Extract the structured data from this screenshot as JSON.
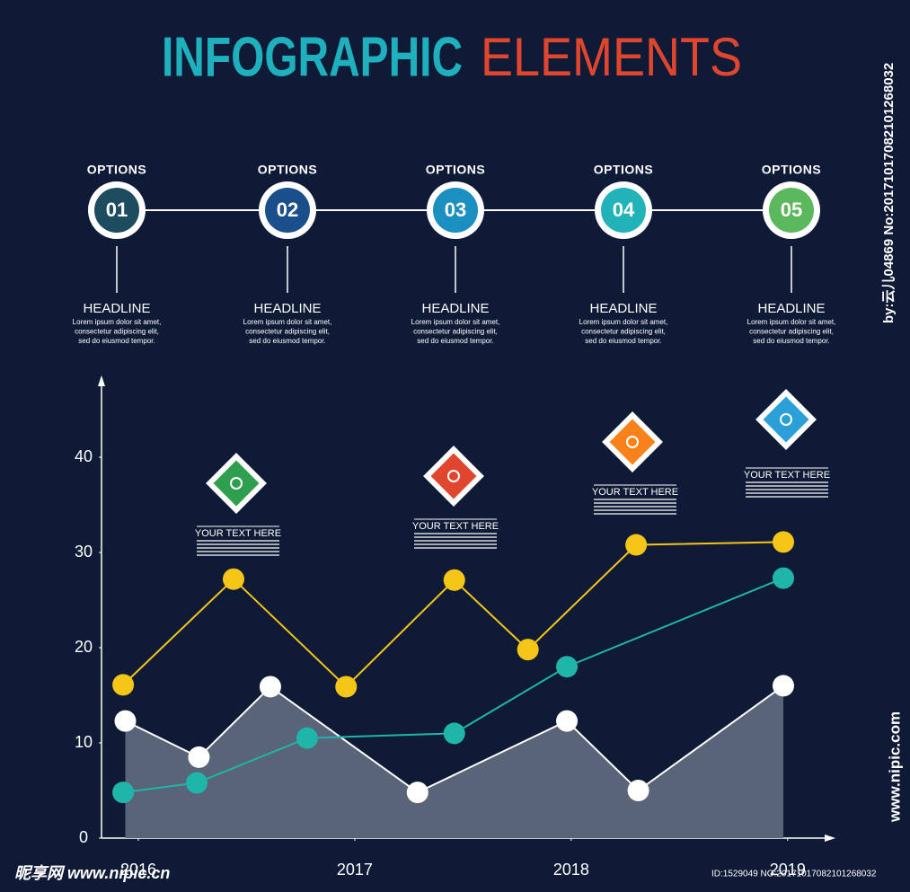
{
  "header": {
    "title_part1": "INFOGRAPHIC",
    "title_part2": "ELEMENTS"
  },
  "options": [
    {
      "label": "OPTIONS",
      "number": "01",
      "color": "#1d4c5e",
      "headline": "HEADLINE",
      "text": [
        "Lorem ipsum dolor sit amet,",
        "consectetur adipiscing elit,",
        "sed do eiusmod tempor."
      ]
    },
    {
      "label": "OPTIONS",
      "number": "02",
      "color": "#1a4f8c",
      "headline": "HEADLINE",
      "text": [
        "Lorem ipsum dolor sit amet,",
        "consectetur adipiscing elit,",
        "sed do eiusmod tempor."
      ]
    },
    {
      "label": "OPTIONS",
      "number": "03",
      "color": "#1b8fbf",
      "headline": "HEADLINE",
      "text": [
        "Lorem ipsum dolor sit amet,",
        "consectetur adipiscing elit,",
        "sed do eiusmod tempor."
      ]
    },
    {
      "label": "OPTIONS",
      "number": "04",
      "color": "#22b3b8",
      "headline": "HEADLINE",
      "text": [
        "Lorem ipsum dolor sit amet,",
        "consectetur adipiscing elit,",
        "sed do eiusmod tempor."
      ]
    },
    {
      "label": "OPTIONS",
      "number": "05",
      "color": "#5cb85c",
      "headline": "HEADLINE",
      "text": [
        "Lorem ipsum dolor sit amet,",
        "consectetur adipiscing elit,",
        "sed do eiusmod tempor."
      ]
    }
  ],
  "chart_data": {
    "type": "line",
    "xlim": [
      2015.83,
      2019.2
    ],
    "xticks": [
      2016,
      2017,
      2018,
      2019
    ],
    "ylim": [
      0,
      48.4
    ],
    "yticks": [
      0,
      10,
      20,
      30,
      40
    ],
    "series": [
      {
        "kind": "area",
        "color": "#ffffff",
        "fill": "#5a6479",
        "x": [
          2015.94,
          2016.28,
          2016.61,
          2017.29,
          2017.98,
          2018.31,
          2018.98
        ],
        "values": [
          12.3,
          8.5,
          15.9,
          4.8,
          12.3,
          5.0,
          16.0
        ]
      },
      {
        "kind": "line",
        "color": "#1fb5a8",
        "x": [
          2015.93,
          2016.27,
          2016.78,
          2017.46,
          2017.98,
          2018.98
        ],
        "values": [
          4.8,
          5.8,
          10.5,
          11.0,
          18.0,
          27.3
        ]
      },
      {
        "kind": "line",
        "color": "#f5c518",
        "x": [
          2015.93,
          2016.44,
          2016.96,
          2017.46,
          2017.8,
          2018.3,
          2018.98
        ],
        "values": [
          16.1,
          27.2,
          15.9,
          27.1,
          19.8,
          30.8,
          31.1
        ]
      }
    ],
    "annotations": [
      {
        "text": "YOUR TEXT HERE",
        "color": "#2e9e4f"
      },
      {
        "text": "YOUR TEXT HERE",
        "color": "#e0452e"
      },
      {
        "text": "YOUR TEXT HERE",
        "color": "#f7821b"
      },
      {
        "text": "YOUR TEXT HERE",
        "color": "#2a9fd8"
      }
    ]
  },
  "watermarks": [
    "by:云儿04869 No:20171017082101268032",
    "www.nipic.com",
    "昵享网 www.nipic.cn",
    "ID:1529049 NO:20171017082101268032"
  ]
}
